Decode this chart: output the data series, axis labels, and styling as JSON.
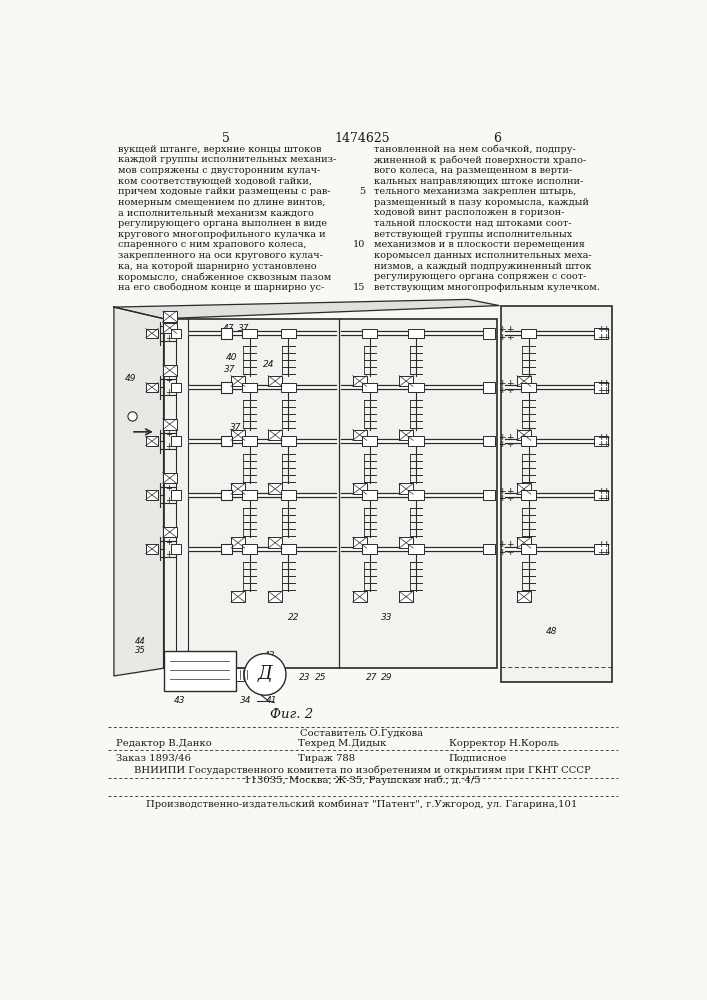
{
  "page_number_left": "5",
  "page_number_center": "1474625",
  "page_number_right": "6",
  "col1_text": [
    "вукщей штанге, верхние концы штоков",
    "каждой группы исполнительных механиз-",
    "мов сопряжены с двусторонним кулач-",
    "ком соответствующей ходовой гайки,",
    "причем ходовые гайки размещены с рав-",
    "номерным смещением по длине винтов,",
    "а исполнительный механизм каждого",
    "регулирующего органа выполнен в виде",
    "кругового многопрофильного кулачка и",
    "спаренного с ним храпового колеса,",
    "закрепленного на оси кругового кулач-",
    "ка, на которой шарнирно установлено",
    "коромысло, снабженное сквозным пазом",
    "на его свободном конце и шарнирно ус-"
  ],
  "col2_text": [
    "тановленной на нем собачкой, подпру-",
    "жиненной к рабочей поверхности храпо-",
    "вого колеса, на размещенном в верти-",
    "кальных направляющих штоке исполни-",
    "тельного механизма закреплен штырь,",
    "размещенный в пазу коромысла, каждый",
    "ходовой винт расположен в горизон-",
    "тальной плоскости над штоками соот-",
    "ветствующей группы исполнительных",
    "механизмов и в плоскости перемещения",
    "коромысел данных исполнительных меха-",
    "низмов, а каждый подпружиненный шток",
    "регулирующего органа сопряжен с соот-",
    "ветствующим многопрофильным кулечком."
  ],
  "fig_caption": "Фиг. 2",
  "editor_label": "Редактор В.Данко",
  "compiler_label": "Составитель О.Гудкова",
  "techred_label": "Техред М.Дидык",
  "corrector_label": "Корректор Н.Король",
  "order_label": "Заказ 1893/46",
  "tirazh_label": "Тираж 788",
  "podpisnoe_label": "Подписное",
  "vniipii_line1": "ВНИИПИ Государственного комитета по изобретениям и открытиям при ГКНТ СССР",
  "vniipii_line2": "113035, Москва, Ж-35, Раушская наб., д. 4/5",
  "publisher_line": "Производственно-издательский комбинат \"Патент\", г.Ужгород, ул. Гагарина,101",
  "bg_color": "#f8f8f4",
  "text_color": "#1a1a1a",
  "line_color": "#2a2a2a"
}
